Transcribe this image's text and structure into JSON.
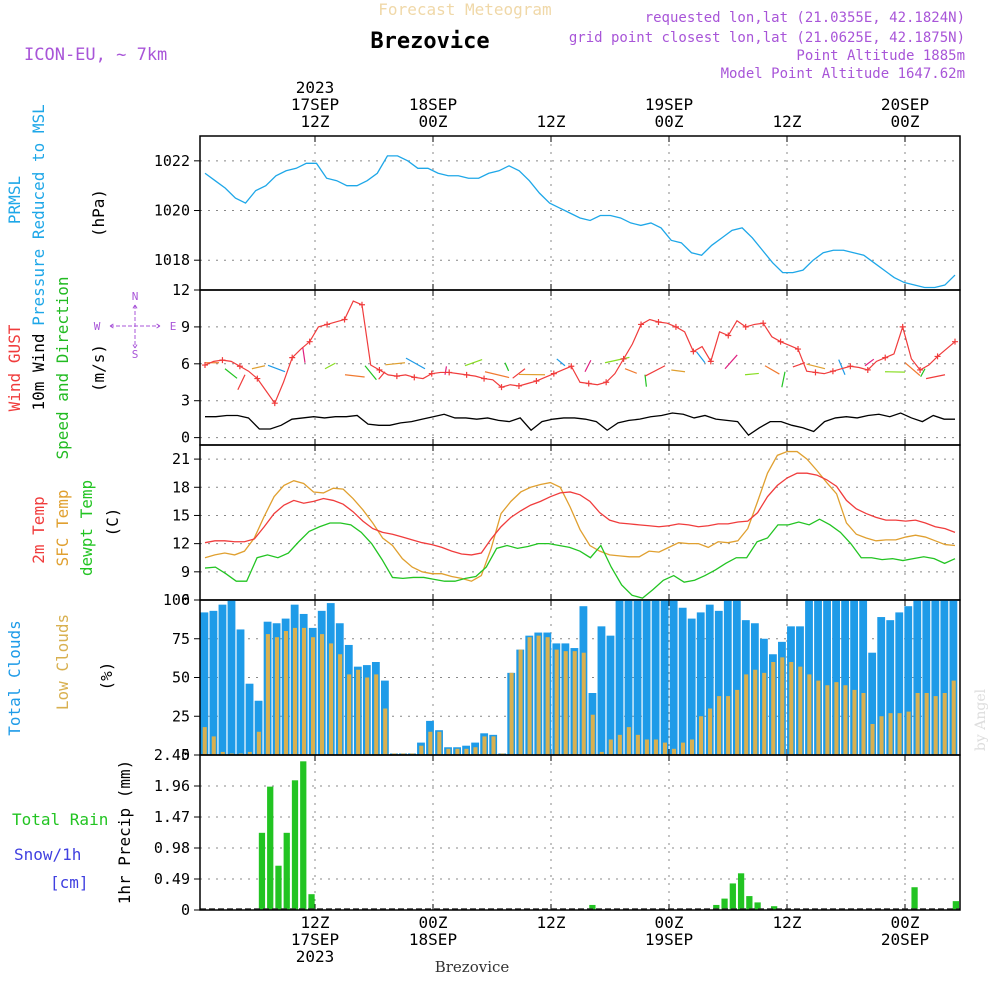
{
  "header": {
    "product": "Forecast Meteogram",
    "station": "Brezovice",
    "model": "ICON-EU, ~ 7km",
    "requested": "requested lon,lat (21.0355E, 42.1824N)",
    "grid": "grid point closest lon,lat (21.0625E, 42.1875N)",
    "point_alt": "Point Altitude 1885m",
    "model_alt": "Model Point Altitude 1647.62m",
    "footer_station": "Brezovice",
    "signature": "by Angel"
  },
  "time_axis": {
    "top": [
      {
        "lines": [
          "2023",
          "17SEP",
          "12Z"
        ]
      },
      {
        "lines": [
          "18SEP",
          "00Z"
        ]
      },
      {
        "lines": [
          "12Z"
        ]
      },
      {
        "lines": [
          "19SEP",
          "00Z"
        ]
      },
      {
        "lines": [
          "12Z"
        ]
      },
      {
        "lines": [
          "20SEP",
          "00Z"
        ]
      }
    ],
    "bottom": [
      {
        "lines": [
          "12Z",
          "17SEP",
          "2023"
        ]
      },
      {
        "lines": [
          "00Z",
          "18SEP"
        ]
      },
      {
        "lines": [
          "12Z"
        ]
      },
      {
        "lines": [
          "00Z",
          "19SEP"
        ]
      },
      {
        "lines": [
          "12Z"
        ]
      },
      {
        "lines": [
          "00Z",
          "20SEP"
        ]
      }
    ]
  },
  "colors": {
    "pressure": "#1ea7e8",
    "gust": "#f03c3c",
    "wind": "#000000",
    "dir": "#22bb22",
    "t2m": "#f03c3c",
    "tsfc": "#e0a030",
    "dewpt": "#22c422",
    "total_clouds": "#1e9be8",
    "low_clouds": "#d8b050",
    "rain": "#22c422",
    "snow": "#4040e0",
    "label_purple": "#a855d8",
    "grid": "#888888"
  },
  "chart_data": [
    {
      "type": "line",
      "name": "pressure",
      "ylabel_lines": [
        "PRMSL",
        "Pressure Reduced to MSL"
      ],
      "unit": "(hPa)",
      "ylim": [
        1016.8,
        1023.0
      ],
      "yticks": [
        "1018",
        "1020",
        "1022"
      ],
      "values": [
        1021.5,
        1021.2,
        1020.9,
        1020.5,
        1020.3,
        1020.8,
        1021.0,
        1021.4,
        1021.6,
        1021.7,
        1021.9,
        1021.9,
        1021.3,
        1021.2,
        1021.0,
        1021.0,
        1021.2,
        1021.5,
        1022.2,
        1022.2,
        1022.0,
        1021.7,
        1021.7,
        1021.5,
        1021.4,
        1021.4,
        1021.3,
        1021.3,
        1021.5,
        1021.6,
        1021.8,
        1021.6,
        1021.2,
        1020.7,
        1020.3,
        1020.1,
        1019.9,
        1019.7,
        1019.6,
        1019.8,
        1019.8,
        1019.7,
        1019.5,
        1019.4,
        1019.5,
        1019.3,
        1018.8,
        1018.7,
        1018.3,
        1018.2,
        1018.6,
        1018.9,
        1019.2,
        1019.3,
        1018.9,
        1018.4,
        1017.9,
        1017.5,
        1017.5,
        1017.6,
        1018.0,
        1018.3,
        1018.4,
        1018.4,
        1018.3,
        1018.2,
        1017.9,
        1017.6,
        1017.3,
        1017.1,
        1017.0,
        1016.9,
        1016.9,
        1017.0,
        1017.4
      ]
    },
    {
      "type": "line",
      "name": "wind",
      "ylabel_lines": [
        "Wind GUST",
        "10m Wind",
        "Speed and Direction"
      ],
      "unit": "(m/s)",
      "compass": {
        "n": "N",
        "s": "S",
        "w": "W",
        "e": "E"
      },
      "ylim": [
        -0.6,
        12
      ],
      "yticks": [
        "0",
        "3",
        "6",
        "9",
        "12"
      ],
      "gust": [
        5.9,
        6.2,
        6.3,
        6.2,
        5.8,
        5.4,
        4.8,
        3.8,
        2.8,
        4.5,
        6.5,
        7.2,
        7.8,
        9.0,
        9.2,
        9.4,
        9.6,
        11.1,
        10.8,
        5.9,
        5.5,
        5.1,
        5.0,
        5.1,
        4.9,
        4.8,
        5.2,
        5.3,
        5.3,
        5.2,
        5.1,
        5.0,
        4.8,
        4.7,
        4.1,
        4.3,
        4.2,
        4.4,
        4.6,
        4.9,
        5.2,
        5.5,
        5.8,
        4.5,
        4.4,
        4.3,
        4.5,
        5.2,
        6.4,
        7.6,
        9.2,
        9.6,
        9.4,
        9.3,
        9.0,
        8.6,
        7.0,
        7.4,
        6.2,
        8.6,
        8.3,
        9.5,
        9.0,
        9.2,
        9.3,
        8.2,
        7.8,
        7.5,
        7.2,
        5.4,
        5.3,
        5.2,
        5.4,
        5.6,
        5.8,
        5.7,
        5.5,
        6.2,
        6.5,
        6.8,
        9.0,
        6.4,
        5.5,
        5.9,
        6.6,
        7.2,
        7.8
      ],
      "speed": [
        1.7,
        1.7,
        1.8,
        1.8,
        1.6,
        0.7,
        0.7,
        1.0,
        1.5,
        1.6,
        1.7,
        1.6,
        1.7,
        1.7,
        1.8,
        1.1,
        1.0,
        1.0,
        1.2,
        1.3,
        1.5,
        1.7,
        1.9,
        1.6,
        1.6,
        1.5,
        1.6,
        1.4,
        1.3,
        1.6,
        0.6,
        1.3,
        1.5,
        1.6,
        1.6,
        1.5,
        1.3,
        0.6,
        1.2,
        1.4,
        1.5,
        1.7,
        1.8,
        2.0,
        1.9,
        1.6,
        1.8,
        1.5,
        1.4,
        1.3,
        0.2,
        0.8,
        1.3,
        1.3,
        1.0,
        0.8,
        0.5,
        1.3,
        1.6,
        1.7,
        1.6,
        1.8,
        1.9,
        1.7,
        2.0,
        1.6,
        1.3,
        1.8,
        1.5,
        1.5
      ]
    },
    {
      "type": "line",
      "name": "temperature",
      "ylabel_lines": [
        "2m Temp",
        "SFC Temp",
        "dewpt Temp"
      ],
      "unit": "(C)",
      "ylim": [
        6,
        22.5
      ],
      "yticks": [
        "6",
        "9",
        "12",
        "15",
        "18",
        "21"
      ],
      "t2m": [
        12.1,
        12.3,
        12.3,
        12.2,
        12.2,
        12.5,
        13.8,
        15.2,
        16.1,
        16.6,
        16.3,
        16.5,
        16.8,
        16.6,
        16.2,
        15.4,
        14.4,
        13.6,
        13.2,
        13.0,
        12.7,
        12.4,
        12.1,
        11.9,
        11.6,
        11.2,
        10.9,
        10.8,
        11.0,
        12.5,
        13.8,
        14.8,
        15.5,
        16.1,
        16.5,
        17.0,
        17.4,
        17.5,
        17.2,
        16.5,
        15.3,
        14.5,
        14.2,
        14.1,
        14.0,
        13.9,
        13.8,
        13.9,
        14.1,
        14.0,
        13.8,
        13.9,
        14.1,
        14.1,
        14.3,
        14.4,
        15.3,
        17.0,
        18.2,
        19.0,
        19.5,
        19.5,
        19.3,
        18.8,
        18.1,
        16.6,
        15.7,
        15.2,
        14.8,
        14.5,
        14.5,
        14.4,
        14.5,
        14.2,
        13.8,
        13.6,
        13.2
      ],
      "tsfc": [
        10.5,
        10.8,
        11.0,
        10.8,
        11.2,
        12.6,
        14.9,
        17.0,
        18.2,
        18.7,
        18.4,
        17.5,
        17.4,
        17.9,
        17.8,
        16.8,
        15.6,
        14.2,
        12.6,
        11.8,
        10.4,
        9.5,
        9.0,
        8.8,
        8.8,
        8.5,
        8.3,
        8.0,
        8.6,
        11.5,
        15.2,
        16.5,
        17.5,
        18.0,
        18.3,
        18.5,
        18.0,
        15.9,
        13.5,
        11.8,
        11.2,
        10.8,
        10.7,
        10.6,
        10.6,
        11.2,
        11.1,
        11.6,
        12.1,
        12.0,
        12.0,
        11.6,
        12.2,
        12.1,
        12.3,
        13.6,
        16.5,
        19.5,
        21.4,
        21.8,
        21.8,
        21.0,
        19.8,
        18.5,
        17.3,
        14.2,
        13.0,
        12.6,
        12.3,
        12.4,
        12.4,
        12.7,
        12.9,
        12.7,
        12.3,
        11.9,
        11.8
      ],
      "dewpt": [
        9.4,
        9.5,
        8.8,
        8.0,
        8.0,
        10.5,
        10.8,
        10.5,
        11.0,
        12.2,
        13.3,
        13.8,
        14.2,
        14.2,
        14.0,
        13.2,
        12.0,
        10.3,
        8.4,
        8.3,
        8.4,
        8.4,
        8.2,
        8.0,
        8.0,
        8.3,
        8.5,
        9.5,
        11.5,
        11.8,
        11.5,
        11.7,
        12.0,
        12.0,
        11.8,
        11.6,
        11.2,
        10.5,
        11.8,
        9.5,
        7.6,
        6.5,
        6.2,
        7.1,
        8.1,
        8.6,
        7.9,
        8.1,
        8.6,
        9.2,
        9.9,
        10.5,
        10.5,
        12.2,
        12.6,
        14.0,
        14.0,
        14.3,
        14.0,
        14.6,
        14.0,
        13.2,
        12.0,
        10.5,
        10.5,
        10.3,
        10.4,
        10.2,
        10.4,
        10.6,
        10.4,
        9.9,
        10.4
      ],
      "dewpt_x_offset": 0
    },
    {
      "type": "bar",
      "name": "clouds",
      "ylabel_lines": [
        "Total Clouds",
        "Low Clouds"
      ],
      "unit": "(%)",
      "ylim": [
        0,
        100
      ],
      "yticks": [
        "0",
        "25",
        "50",
        "75",
        "100"
      ],
      "total": [
        92,
        93,
        97,
        100,
        81,
        46,
        35,
        86,
        85,
        88,
        97,
        91,
        82,
        93,
        98,
        85,
        71,
        57,
        58,
        60,
        48,
        1,
        1,
        1,
        8,
        22,
        16,
        5,
        5,
        6,
        8,
        14,
        13,
        1,
        53,
        68,
        77,
        79,
        79,
        72,
        72,
        69,
        96,
        40,
        83,
        77,
        100,
        100,
        100,
        100,
        100,
        100,
        100,
        95,
        88,
        92,
        97,
        93,
        100,
        100,
        87,
        85,
        75,
        65,
        73,
        83,
        83,
        100,
        100,
        100,
        100,
        100,
        100,
        100,
        66,
        89,
        87,
        92,
        96,
        100,
        100,
        100,
        100,
        100
      ],
      "low": [
        18,
        12,
        2,
        1,
        1,
        2,
        15,
        78,
        76,
        80,
        82,
        82,
        76,
        78,
        72,
        65,
        52,
        55,
        50,
        52,
        30,
        1,
        1,
        1,
        6,
        15,
        15,
        4,
        4,
        4,
        5,
        12,
        12,
        1,
        53,
        68,
        76,
        77,
        76,
        68,
        67,
        67,
        66,
        26,
        2,
        10,
        13,
        18,
        13,
        10,
        10,
        8,
        4,
        8,
        10,
        25,
        30,
        38,
        38,
        42,
        52,
        55,
        53,
        60,
        63,
        60,
        57,
        52,
        48,
        45,
        47,
        45,
        42,
        40,
        20,
        25,
        27,
        27,
        28,
        40,
        40,
        38,
        40,
        48
      ],
      "bar_x_offset": 0
    },
    {
      "type": "bar",
      "name": "precip",
      "ylabel_lines": [
        "1hr Precip (mm)"
      ],
      "unit": "",
      "left_labels": [
        "Total  Rain",
        "Snow/1h",
        "[cm]"
      ],
      "ylim": [
        0,
        2.45
      ],
      "yticks": [
        "0",
        "0.49",
        "0.98",
        "1.47",
        "1.96",
        "2.45"
      ],
      "rain": [
        0,
        0,
        0,
        0,
        0,
        0,
        0,
        1.22,
        1.95,
        0.7,
        1.22,
        2.05,
        2.35,
        0.25,
        0,
        0,
        0,
        0,
        0,
        0,
        0,
        0,
        0,
        0,
        0,
        0,
        0,
        0,
        0,
        0,
        0,
        0,
        0,
        0,
        0,
        0,
        0,
        0,
        0,
        0,
        0,
        0,
        0,
        0,
        0,
        0,
        0,
        0.08,
        0,
        0,
        0,
        0,
        0,
        0,
        0,
        0,
        0,
        0,
        0,
        0,
        0,
        0,
        0.08,
        0.18,
        0.42,
        0.58,
        0.22,
        0.12,
        0,
        0.06,
        0,
        0,
        0,
        0,
        0,
        0,
        0,
        0,
        0,
        0,
        0,
        0,
        0,
        0,
        0,
        0,
        0.36,
        0,
        0,
        0,
        0,
        0.14
      ]
    }
  ]
}
